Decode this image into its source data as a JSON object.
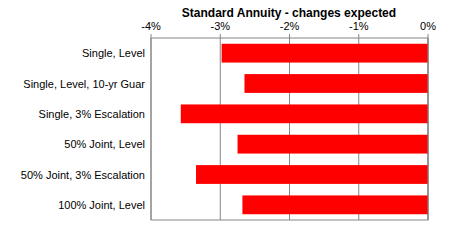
{
  "chart_data": {
    "type": "bar",
    "orientation": "horizontal",
    "title": "Standard Annuity - changes expected",
    "categories": [
      "Single, Level",
      "Single, Level, 10-yr Guar",
      "Single, 3% Escalation",
      "50% Joint, Level",
      "50% Joint, 3% Escalation",
      "100% Joint, Level"
    ],
    "values": [
      -2.98,
      -2.65,
      -3.57,
      -2.75,
      -3.35,
      -2.68
    ],
    "color": "#ff0000",
    "xlim": [
      -4,
      0
    ],
    "xticks": [
      {
        "value": -4,
        "label": "-4%"
      },
      {
        "value": -3,
        "label": "-3%"
      },
      {
        "value": -2,
        "label": "-2%"
      },
      {
        "value": -1,
        "label": "-1%"
      },
      {
        "value": 0,
        "label": "0%"
      }
    ],
    "grid": true
  }
}
